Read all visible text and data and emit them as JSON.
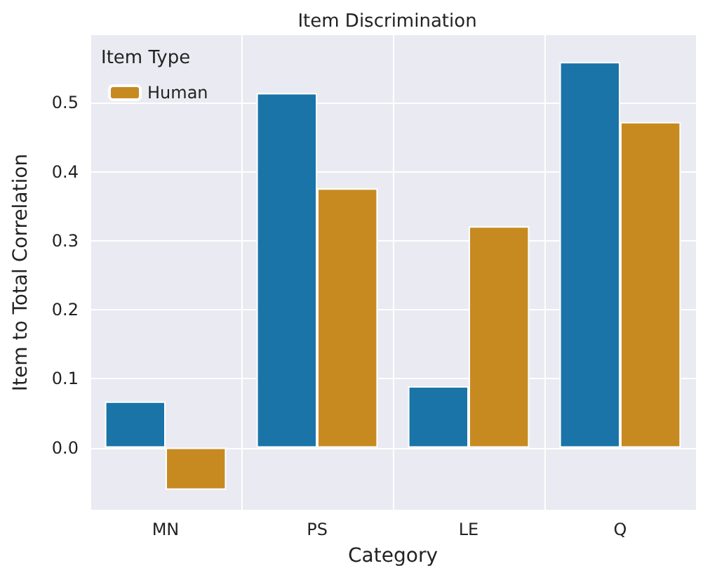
{
  "chart_data": {
    "type": "bar",
    "title": "Item Discrimination",
    "xlabel": "Category",
    "ylabel": "Item to Total Correlation",
    "legend_title": "Item Type",
    "categories": [
      "MN",
      "PS",
      "LE",
      "Q"
    ],
    "series": [
      {
        "color": "#1a74a8",
        "values": [
          0.067,
          0.514,
          0.089,
          0.559
        ]
      },
      {
        "name": "Human",
        "color": "#c68a21",
        "values": [
          -0.061,
          0.376,
          0.321,
          0.472
        ]
      }
    ],
    "ylim": [
      -0.09,
      0.598
    ],
    "yticks": [
      {
        "value": 0,
        "label": "0.0"
      },
      {
        "value": 0.1,
        "label": "0.1"
      },
      {
        "value": 0.2,
        "label": "0.2"
      },
      {
        "value": 0.3,
        "label": "0.3"
      },
      {
        "value": 0.4,
        "label": "0.4"
      },
      {
        "value": 0.5,
        "label": "0.5"
      }
    ],
    "grid": true,
    "legend": "top left"
  }
}
